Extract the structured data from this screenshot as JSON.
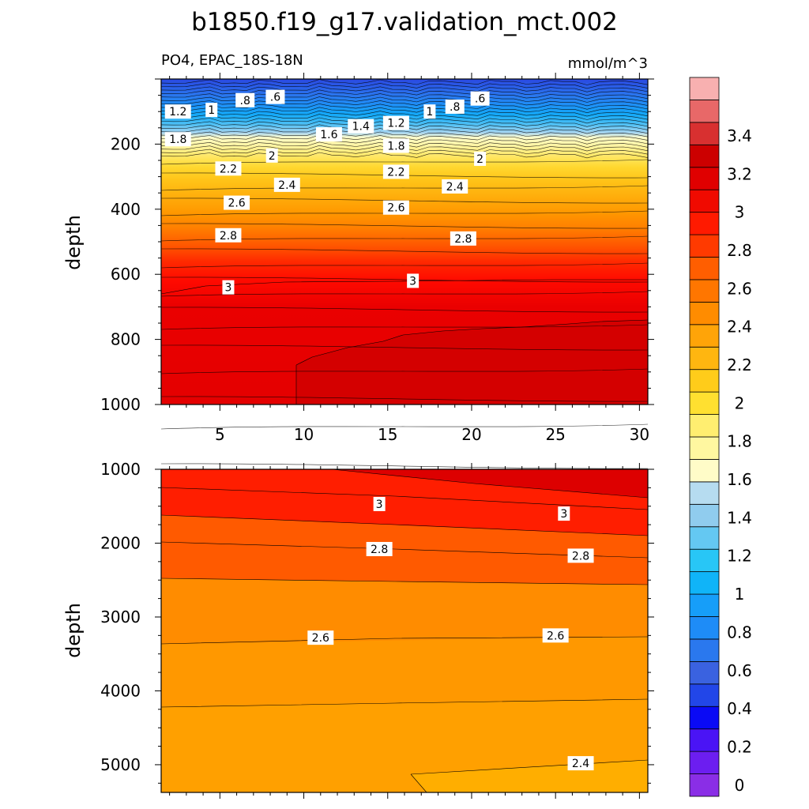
{
  "title": "b1850.f19_g17.validation_mct.002",
  "chart_data": [
    {
      "type": "heatmap",
      "panel": "upper",
      "left_label": "PO4, EPAC_18S-18N",
      "right_label": "mmol/m^3",
      "ylabel": "depth",
      "xlabel": "",
      "xlim": [
        1.5,
        30.5
      ],
      "ylim": [
        0,
        1000
      ],
      "y_reversed": true,
      "xticks": [
        "5",
        "10",
        "15",
        "20",
        "25",
        "30"
      ],
      "yticks": [
        "200",
        "400",
        "600",
        "800",
        "1000"
      ],
      "contour_labels": [
        {
          "text": "1.2",
          "x": 2.5,
          "y": 100
        },
        {
          "text": "1",
          "x": 4.5,
          "y": 95
        },
        {
          "text": ".8",
          "x": 6.5,
          "y": 65
        },
        {
          "text": ".6",
          "x": 8.3,
          "y": 55
        },
        {
          "text": "1.6",
          "x": 11.5,
          "y": 170
        },
        {
          "text": "1.4",
          "x": 13.4,
          "y": 145
        },
        {
          "text": "1.2",
          "x": 15.5,
          "y": 135
        },
        {
          "text": "1",
          "x": 17.5,
          "y": 100
        },
        {
          "text": ".8",
          "x": 19.0,
          "y": 85
        },
        {
          "text": ".6",
          "x": 20.5,
          "y": 60
        },
        {
          "text": "1.8",
          "x": 2.5,
          "y": 185
        },
        {
          "text": "1.8",
          "x": 15.5,
          "y": 205
        },
        {
          "text": "2",
          "x": 8.1,
          "y": 235
        },
        {
          "text": "2",
          "x": 20.5,
          "y": 245
        },
        {
          "text": "2.2",
          "x": 5.5,
          "y": 275
        },
        {
          "text": "2.2",
          "x": 15.5,
          "y": 285
        },
        {
          "text": "2.4",
          "x": 9.0,
          "y": 325
        },
        {
          "text": "2.4",
          "x": 19.0,
          "y": 330
        },
        {
          "text": "2.6",
          "x": 6.0,
          "y": 380
        },
        {
          "text": "2.6",
          "x": 15.5,
          "y": 395
        },
        {
          "text": "2.8",
          "x": 5.5,
          "y": 480
        },
        {
          "text": "2.8",
          "x": 19.5,
          "y": 490
        },
        {
          "text": "3",
          "x": 5.5,
          "y": 640
        },
        {
          "text": "3",
          "x": 16.5,
          "y": 620
        }
      ]
    },
    {
      "type": "heatmap",
      "panel": "lower",
      "ylabel": "depth",
      "xlabel": "",
      "xlim": [
        1.5,
        30.5
      ],
      "ylim": [
        1000,
        5375
      ],
      "y_reversed": true,
      "xticks": [],
      "yticks": [
        "1000",
        "2000",
        "3000",
        "4000",
        "5000"
      ],
      "contour_labels": [
        {
          "text": "3",
          "x": 14.5,
          "y": 1470
        },
        {
          "text": "3",
          "x": 25.5,
          "y": 1600
        },
        {
          "text": "2.8",
          "x": 14.5,
          "y": 2080
        },
        {
          "text": "2.8",
          "x": 26.5,
          "y": 2170
        },
        {
          "text": "2.6",
          "x": 11.0,
          "y": 3280
        },
        {
          "text": "2.6",
          "x": 25.0,
          "y": 3250
        },
        {
          "text": "2.4",
          "x": 26.5,
          "y": 4980
        }
      ]
    }
  ],
  "colorbar": {
    "labels": [
      "0",
      "0.2",
      "0.4",
      "0.6",
      "0.8",
      "1",
      "1.2",
      "1.4",
      "1.6",
      "1.8",
      "2",
      "2.2",
      "2.4",
      "2.6",
      "2.8",
      "3",
      "3.2",
      "3.4"
    ],
    "colors": [
      "#8a2ee6",
      "#6c1ef0",
      "#4a14f5",
      "#0a0af5",
      "#2246e8",
      "#3a62e0",
      "#2a78ee",
      "#1e8cf7",
      "#169ef9",
      "#10b4f8",
      "#28c6f6",
      "#64c8f2",
      "#90ccee",
      "#b6dcf0",
      "#fffcc8",
      "#fff7a0",
      "#ffee70",
      "#ffe030",
      "#ffcc1a",
      "#ffb610",
      "#ffa408",
      "#ff8c00",
      "#ff7600",
      "#ff5e00",
      "#ff3a00",
      "#ff1a00",
      "#f00a00",
      "#e00000",
      "#cc0000",
      "#d83030",
      "#e86868",
      "#f8b0b0"
    ]
  }
}
